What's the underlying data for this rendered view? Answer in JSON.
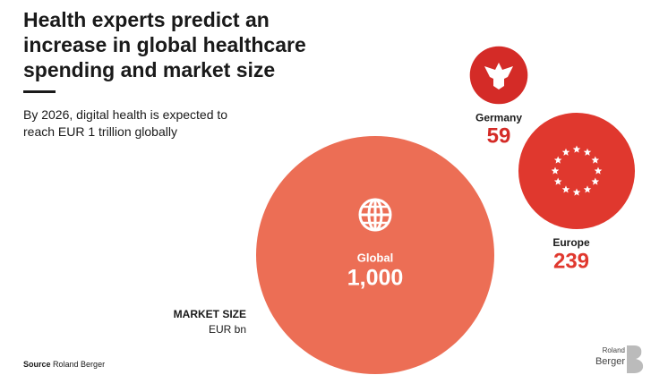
{
  "chart_data": {
    "type": "bubble",
    "title": "Health experts predict an increase in global healthcare spending and market size",
    "subtitle": "By 2026, digital health is expected to reach EUR 1 trillion globally",
    "categories": [
      "Global",
      "Europe",
      "Germany"
    ],
    "values": [
      1000,
      239,
      59
    ],
    "value_labels": [
      "1,000",
      "239",
      "59"
    ],
    "colors": [
      "#ec6e55",
      "#e0382e",
      "#d42b27"
    ],
    "axis_label": "MARKET SIZE",
    "unit": "EUR bn",
    "source_label": "Source",
    "source": "Roland Berger",
    "logo": [
      "Roland",
      "Berger"
    ]
  }
}
